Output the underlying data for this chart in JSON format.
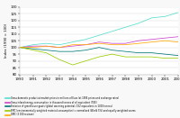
{
  "years": [
    1990,
    1991,
    1992,
    1993,
    1994,
    1995,
    1996,
    1997,
    1998,
    1999,
    2000,
    2001,
    2002
  ],
  "gdp": [
    100,
    102,
    103,
    102,
    104,
    106,
    109,
    112,
    115,
    118,
    122,
    123,
    126
  ],
  "energy": [
    100,
    101,
    101,
    100,
    101,
    102,
    104,
    103,
    103,
    105,
    106,
    107,
    108
  ],
  "ghg": [
    100,
    99,
    98,
    97,
    97,
    98,
    100,
    98,
    97,
    96,
    96,
    95,
    94
  ],
  "emc": [
    100,
    98,
    96,
    91,
    87,
    90,
    93,
    95,
    93,
    93,
    93,
    92,
    92
  ],
  "dmc": [
    100,
    100,
    101,
    100,
    102,
    102,
    103,
    102,
    102,
    103,
    104,
    105,
    104
  ],
  "colors": {
    "gdp": "#55ddcc",
    "energy": "#cc44cc",
    "ghg": "#007777",
    "emc": "#99cc00",
    "dmc": "#ffaa00"
  },
  "ylabel": "Index (1990 = 100)",
  "ylim": [
    80,
    130
  ],
  "yticks": [
    80,
    85,
    90,
    95,
    100,
    105,
    110,
    115,
    120,
    125,
    130
  ],
  "xticks": [
    1990,
    1991,
    1992,
    1993,
    1994,
    1995,
    1996,
    1997,
    1998,
    1999,
    2000,
    2001,
    2002
  ],
  "legend_labels": [
    "Gross domestic product at market prices in millions of Euro (at 1995 prices and exchange rates)",
    "Gross inland energy consumption in thousand tonnes of oil equivalent (TOE)",
    "Emission of greenhouse gases (global warming potential, CO2 equivalent, in 1000 tonnes)",
    "EMC (environmentally weighted material consumption) = normalised (World 5%) and equally weighted scores",
    "DMC (3 000 reviews)"
  ],
  "legend_colors": [
    "#55ddcc",
    "#cc44cc",
    "#007777",
    "#99cc00",
    "#ffaa00"
  ],
  "bg_color": "#f8f8f8",
  "line_width": 0.55
}
